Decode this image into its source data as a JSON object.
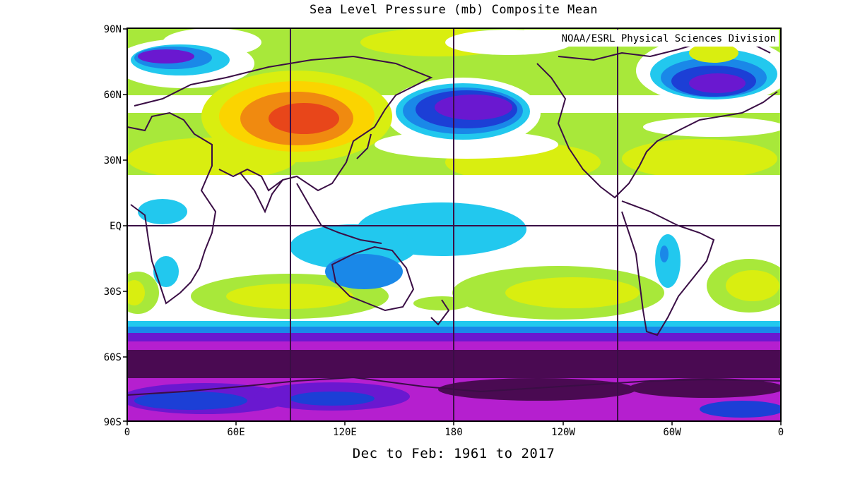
{
  "title": "Sea Level Pressure (mb) Composite Mean",
  "credit": "NOAA/ESRL Physical Sciences Division",
  "period": "Dec to Feb: 1961 to 2017",
  "lat_labels": [
    "90N",
    "60N",
    "30N",
    "EQ",
    "30S",
    "60S",
    "90S"
  ],
  "lon_labels": [
    "0",
    "60E",
    "120E",
    "180",
    "120W",
    "60W",
    "0"
  ],
  "colors": {
    "very_high": "#e8461a",
    "high": "#f08a10",
    "mid_high": "#fbd400",
    "above": "#d9ee10",
    "moderate": "#a8e83a",
    "normal": "#ffffff",
    "below": "#22c8ee",
    "low": "#1a88e8",
    "lower": "#1c3fd6",
    "very_low": "#6a18d0",
    "extreme_low": "#b51fcf",
    "deep_low": "#4a0a52",
    "coast": "#3a0e45"
  }
}
